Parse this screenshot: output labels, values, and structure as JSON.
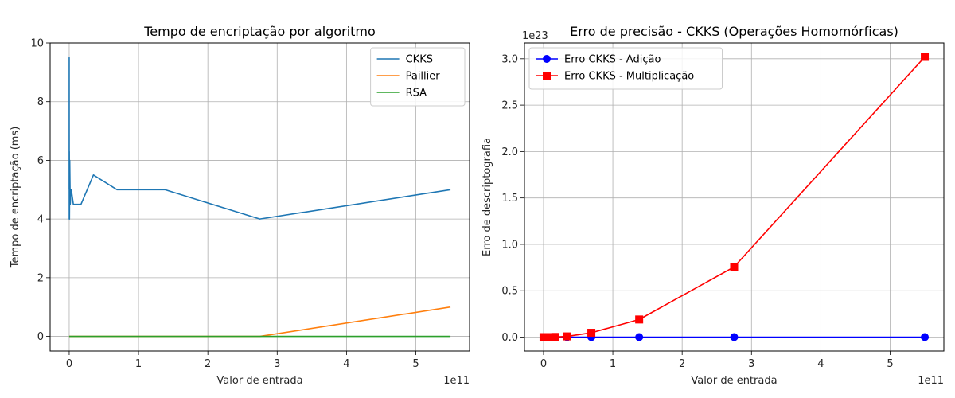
{
  "chart_data": [
    {
      "type": "line",
      "title": "Tempo de encriptação por algoritmo",
      "xlabel": "Valor de entrada",
      "ylabel": "Tempo de encriptação (ms)",
      "x_offset_label": "1e11",
      "xlim": [
        -0.275,
        5.775
      ],
      "ylim": [
        -0.5,
        10
      ],
      "x_ticks": [
        0,
        1,
        2,
        3,
        4,
        5
      ],
      "x_tick_labels": [
        "0",
        "1",
        "2",
        "3",
        "4",
        "5"
      ],
      "y_ticks": [
        0,
        2,
        4,
        6,
        8,
        10
      ],
      "y_tick_labels": [
        "0",
        "2",
        "4",
        "6",
        "8",
        "10"
      ],
      "grid": true,
      "legend_position": "top-right",
      "series": [
        {
          "name": "CKKS",
          "color": "#1f77b4",
          "marker": "none",
          "x": [
            0,
            0.0002,
            0.0005,
            0.001,
            0.002,
            0.004,
            0.008,
            0.015,
            0.03,
            0.06,
            0.12,
            0.17,
            0.35,
            0.69,
            1.38,
            2.75,
            5.5
          ],
          "y": [
            5.0,
            9.5,
            6.5,
            4.0,
            6.3,
            4.0,
            6.0,
            4.5,
            5.0,
            4.5,
            4.5,
            4.5,
            5.5,
            5.0,
            5.0,
            4.0,
            5.0
          ]
        },
        {
          "name": "Paillier",
          "color": "#ff7f0e",
          "marker": "none",
          "x": [
            0,
            0.01,
            0.1,
            1.0,
            2.75,
            5.5
          ],
          "y": [
            0,
            0,
            0,
            0,
            0,
            1.0
          ]
        },
        {
          "name": "RSA",
          "color": "#2ca02c",
          "marker": "none",
          "x": [
            0,
            0.01,
            0.1,
            1.0,
            2.75,
            5.5
          ],
          "y": [
            0,
            0,
            0,
            0,
            0,
            0
          ]
        }
      ]
    },
    {
      "type": "line",
      "title": "Erro de precisão - CKKS (Operações Homomórficas)",
      "xlabel": "Valor de entrada",
      "ylabel": "Erro de descriptografia",
      "x_offset_label": "1e11",
      "y_offset_label": "1e23",
      "xlim": [
        -0.275,
        5.775
      ],
      "ylim": [
        -0.15,
        3.17
      ],
      "x_ticks": [
        0,
        1,
        2,
        3,
        4,
        5
      ],
      "x_tick_labels": [
        "0",
        "1",
        "2",
        "3",
        "4",
        "5"
      ],
      "y_ticks": [
        0,
        0.5,
        1.0,
        1.5,
        2.0,
        2.5,
        3.0
      ],
      "y_tick_labels": [
        "0.0",
        "0.5",
        "1.0",
        "1.5",
        "2.0",
        "2.5",
        "3.0"
      ],
      "grid": true,
      "legend_position": "top-left",
      "series": [
        {
          "name": "Erro CKKS - Adição",
          "color": "#0000ff",
          "marker": "circle",
          "x": [
            0,
            0.01,
            0.02,
            0.04,
            0.086,
            0.17,
            0.34,
            0.69,
            1.38,
            2.75,
            5.5
          ],
          "y": [
            0,
            0,
            0,
            0,
            0,
            0,
            0,
            0,
            0,
            0,
            0
          ]
        },
        {
          "name": "Erro CKKS - Multiplicação",
          "color": "#ff0000",
          "marker": "square",
          "x": [
            0,
            0.01,
            0.02,
            0.04,
            0.086,
            0.17,
            0.34,
            0.69,
            1.38,
            2.75,
            5.5
          ],
          "y": [
            0,
            0,
            0,
            0,
            0,
            0.002,
            0.008,
            0.047,
            0.19,
            0.757,
            3.02
          ]
        }
      ]
    }
  ]
}
